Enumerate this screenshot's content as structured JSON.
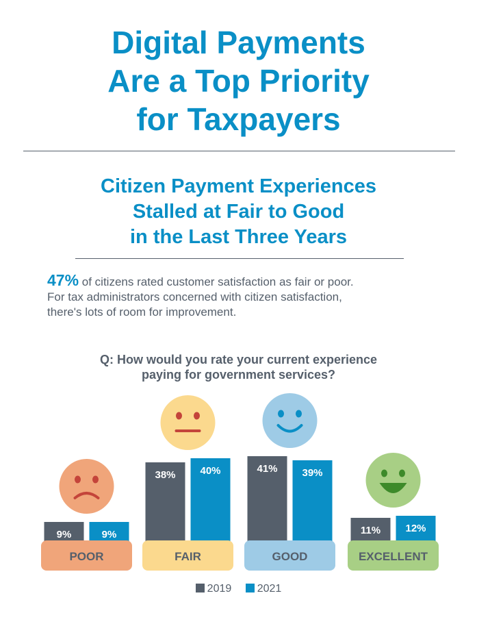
{
  "title": {
    "line1": "Digital Payments",
    "line2": "Are a Top Priority",
    "line3": "for Taxpayers"
  },
  "subtitle": {
    "line1": "Citizen Payment Experiences",
    "line2": "Stalled at Fair to Good",
    "line3": "in the Last Three Years"
  },
  "intro": {
    "highlight": "47%",
    "line1": " of citizens rated customer satisfaction as fair or poor.",
    "line2": "For tax administrators concerned with citizen satisfaction,",
    "line3": "there's lots of room for improvement."
  },
  "question": {
    "line1": "Q: How would you rate your current experience",
    "line2": "paying for government services?"
  },
  "colors": {
    "accent": "#0a8fc6",
    "series_2019": "#555f6b",
    "series_2021": "#0a8fc6",
    "poor": "#f0a57a",
    "fair": "#fbd98e",
    "good": "#9ecbe6",
    "excellent": "#a8cf85"
  },
  "chart_data": {
    "type": "bar",
    "categories": [
      "POOR",
      "FAIR",
      "GOOD",
      "EXCELLENT"
    ],
    "series": [
      {
        "name": "2019",
        "values": [
          9,
          38,
          41,
          11
        ],
        "labels": [
          "9%",
          "38%",
          "41%",
          "11%"
        ]
      },
      {
        "name": "2021",
        "values": [
          9,
          40,
          39,
          12
        ],
        "labels": [
          "9%",
          "40%",
          "39%",
          "12%"
        ]
      }
    ],
    "faces": [
      "sad-face-icon",
      "neutral-face-icon",
      "smile-face-icon",
      "grin-face-icon"
    ],
    "legend_position": "bottom"
  }
}
